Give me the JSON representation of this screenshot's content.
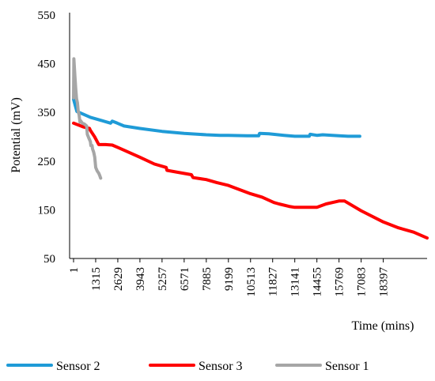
{
  "chart_data": {
    "type": "line",
    "xlabel": "Time (mins)",
    "ylabel": "Potential (mV)",
    "xlim": [
      1,
      21000
    ],
    "ylim": [
      50,
      550
    ],
    "x_ticks": [
      1,
      1315,
      2629,
      3943,
      5257,
      6571,
      7885,
      9199,
      10513,
      11827,
      13141,
      14455,
      15769,
      17083,
      18397
    ],
    "y_ticks": [
      50,
      150,
      250,
      350,
      450,
      550
    ],
    "grid": false,
    "legend_position": "bottom",
    "colors": {
      "Sensor 2": "#1f9bd7",
      "Sensor 3": "#ff0000",
      "Sensor 1": "#a6a6a6"
    },
    "series": [
      {
        "name": "Sensor 2",
        "x": [
          1,
          200,
          600,
          1000,
          1600,
          2200,
          2300,
          2600,
          3000,
          3943,
          5257,
          6571,
          7885,
          8700,
          9199,
          10300,
          11000,
          11050,
          11600,
          12500,
          13141,
          14000,
          14050,
          14455,
          14800,
          15769,
          16300,
          17000
        ],
        "y": [
          377,
          352,
          346,
          340,
          334,
          328,
          332,
          328,
          322,
          317,
          311,
          307,
          304,
          303,
          303,
          302,
          302,
          307,
          306,
          303,
          301,
          301,
          305,
          303,
          304,
          302,
          301,
          301
        ]
      },
      {
        "name": "Sensor 3",
        "x": [
          1,
          600,
          950,
          1000,
          1250,
          1500,
          1900,
          2300,
          2700,
          3943,
          4800,
          5500,
          5550,
          6200,
          7000,
          7100,
          7885,
          8500,
          9199,
          10513,
          11200,
          11900,
          12200,
          12800,
          13141,
          13800,
          14455,
          15000,
          15769,
          16100,
          17083,
          18397,
          19300,
          20200,
          21000
        ],
        "y": [
          328,
          320,
          317,
          313,
          300,
          284,
          284,
          283,
          277,
          258,
          244,
          237,
          231,
          227,
          222,
          216,
          212,
          206,
          200,
          183,
          176,
          165,
          162,
          157,
          155,
          155,
          155,
          162,
          168,
          168,
          148,
          125,
          113,
          104,
          92
        ]
      },
      {
        "name": "Sensor 1",
        "x": [
          1,
          20,
          80,
          130,
          180,
          230,
          280,
          330,
          380,
          420,
          520,
          650,
          780,
          820,
          900,
          1000,
          1030,
          1100,
          1130,
          1200,
          1260,
          1315,
          1400,
          1500,
          1560,
          1610
        ],
        "y": [
          380,
          460,
          425,
          400,
          378,
          370,
          352,
          345,
          330,
          333,
          328,
          326,
          322,
          305,
          298,
          290,
          282,
          282,
          275,
          268,
          258,
          237,
          230,
          225,
          220,
          215
        ]
      }
    ]
  }
}
